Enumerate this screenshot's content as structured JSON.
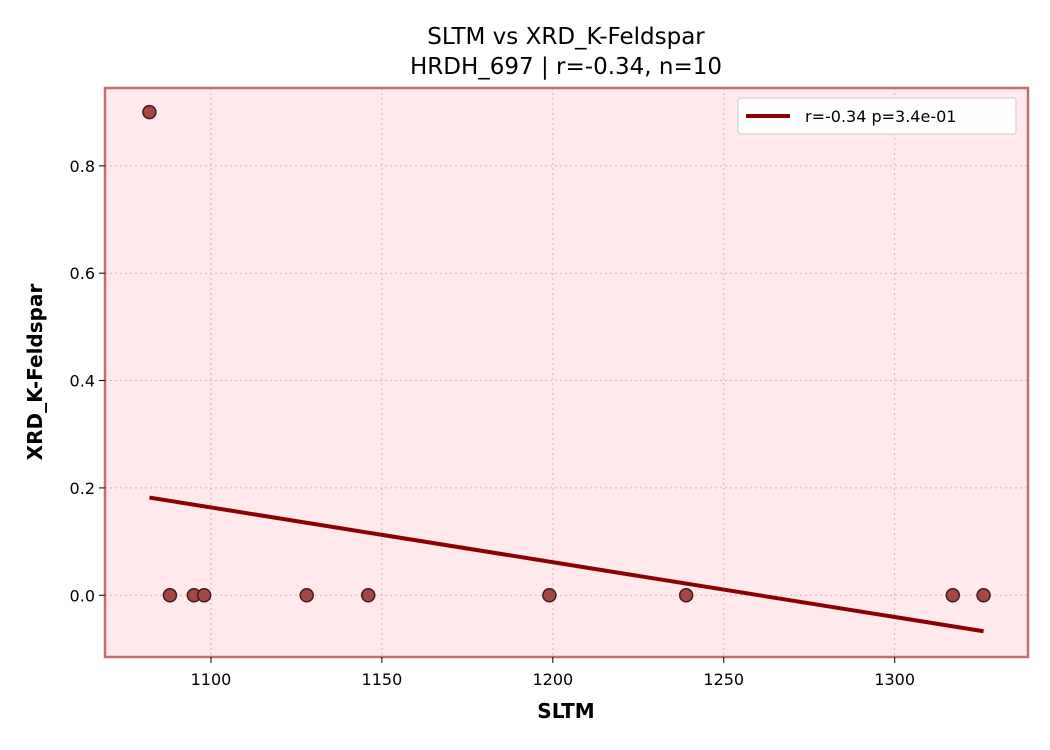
{
  "chart_data": {
    "type": "scatter",
    "title": "SLTM vs XRD_K-Feldspar",
    "subtitle": "HRDH_697 | r=-0.34, n=10",
    "xlabel": "SLTM",
    "ylabel": "XRD_K-Feldspar",
    "xlim": [
      1069,
      1339
    ],
    "ylim": [
      -0.115,
      0.945
    ],
    "xticks": [
      1100,
      1150,
      1200,
      1250,
      1300
    ],
    "yticks": [
      0.0,
      0.2,
      0.4,
      0.6,
      0.8
    ],
    "xtick_labels": [
      "1100",
      "1150",
      "1200",
      "1250",
      "1300"
    ],
    "ytick_labels": [
      "0.0",
      "0.2",
      "0.4",
      "0.6",
      "0.8"
    ],
    "grid": true,
    "legend_position": "top-right",
    "series": [
      {
        "kind": "points",
        "x": [
          1082,
          1088,
          1095,
          1098,
          1128,
          1146,
          1199,
          1239,
          1317,
          1326
        ],
        "y": [
          0.9,
          0,
          0,
          0,
          0,
          0,
          0,
          0,
          0,
          0
        ]
      },
      {
        "kind": "fit-line",
        "name": "r=-0.34  p=3.4e-01",
        "x": [
          1082,
          1326
        ],
        "y": [
          0.182,
          -0.067
        ]
      }
    ],
    "colors": {
      "background": "#ffe9ec",
      "frame": "#c07070",
      "point_fill": "#a84545",
      "point_edge": "#3a1f1f",
      "line": "#8b0000",
      "grid": "#d9b3b8"
    }
  }
}
